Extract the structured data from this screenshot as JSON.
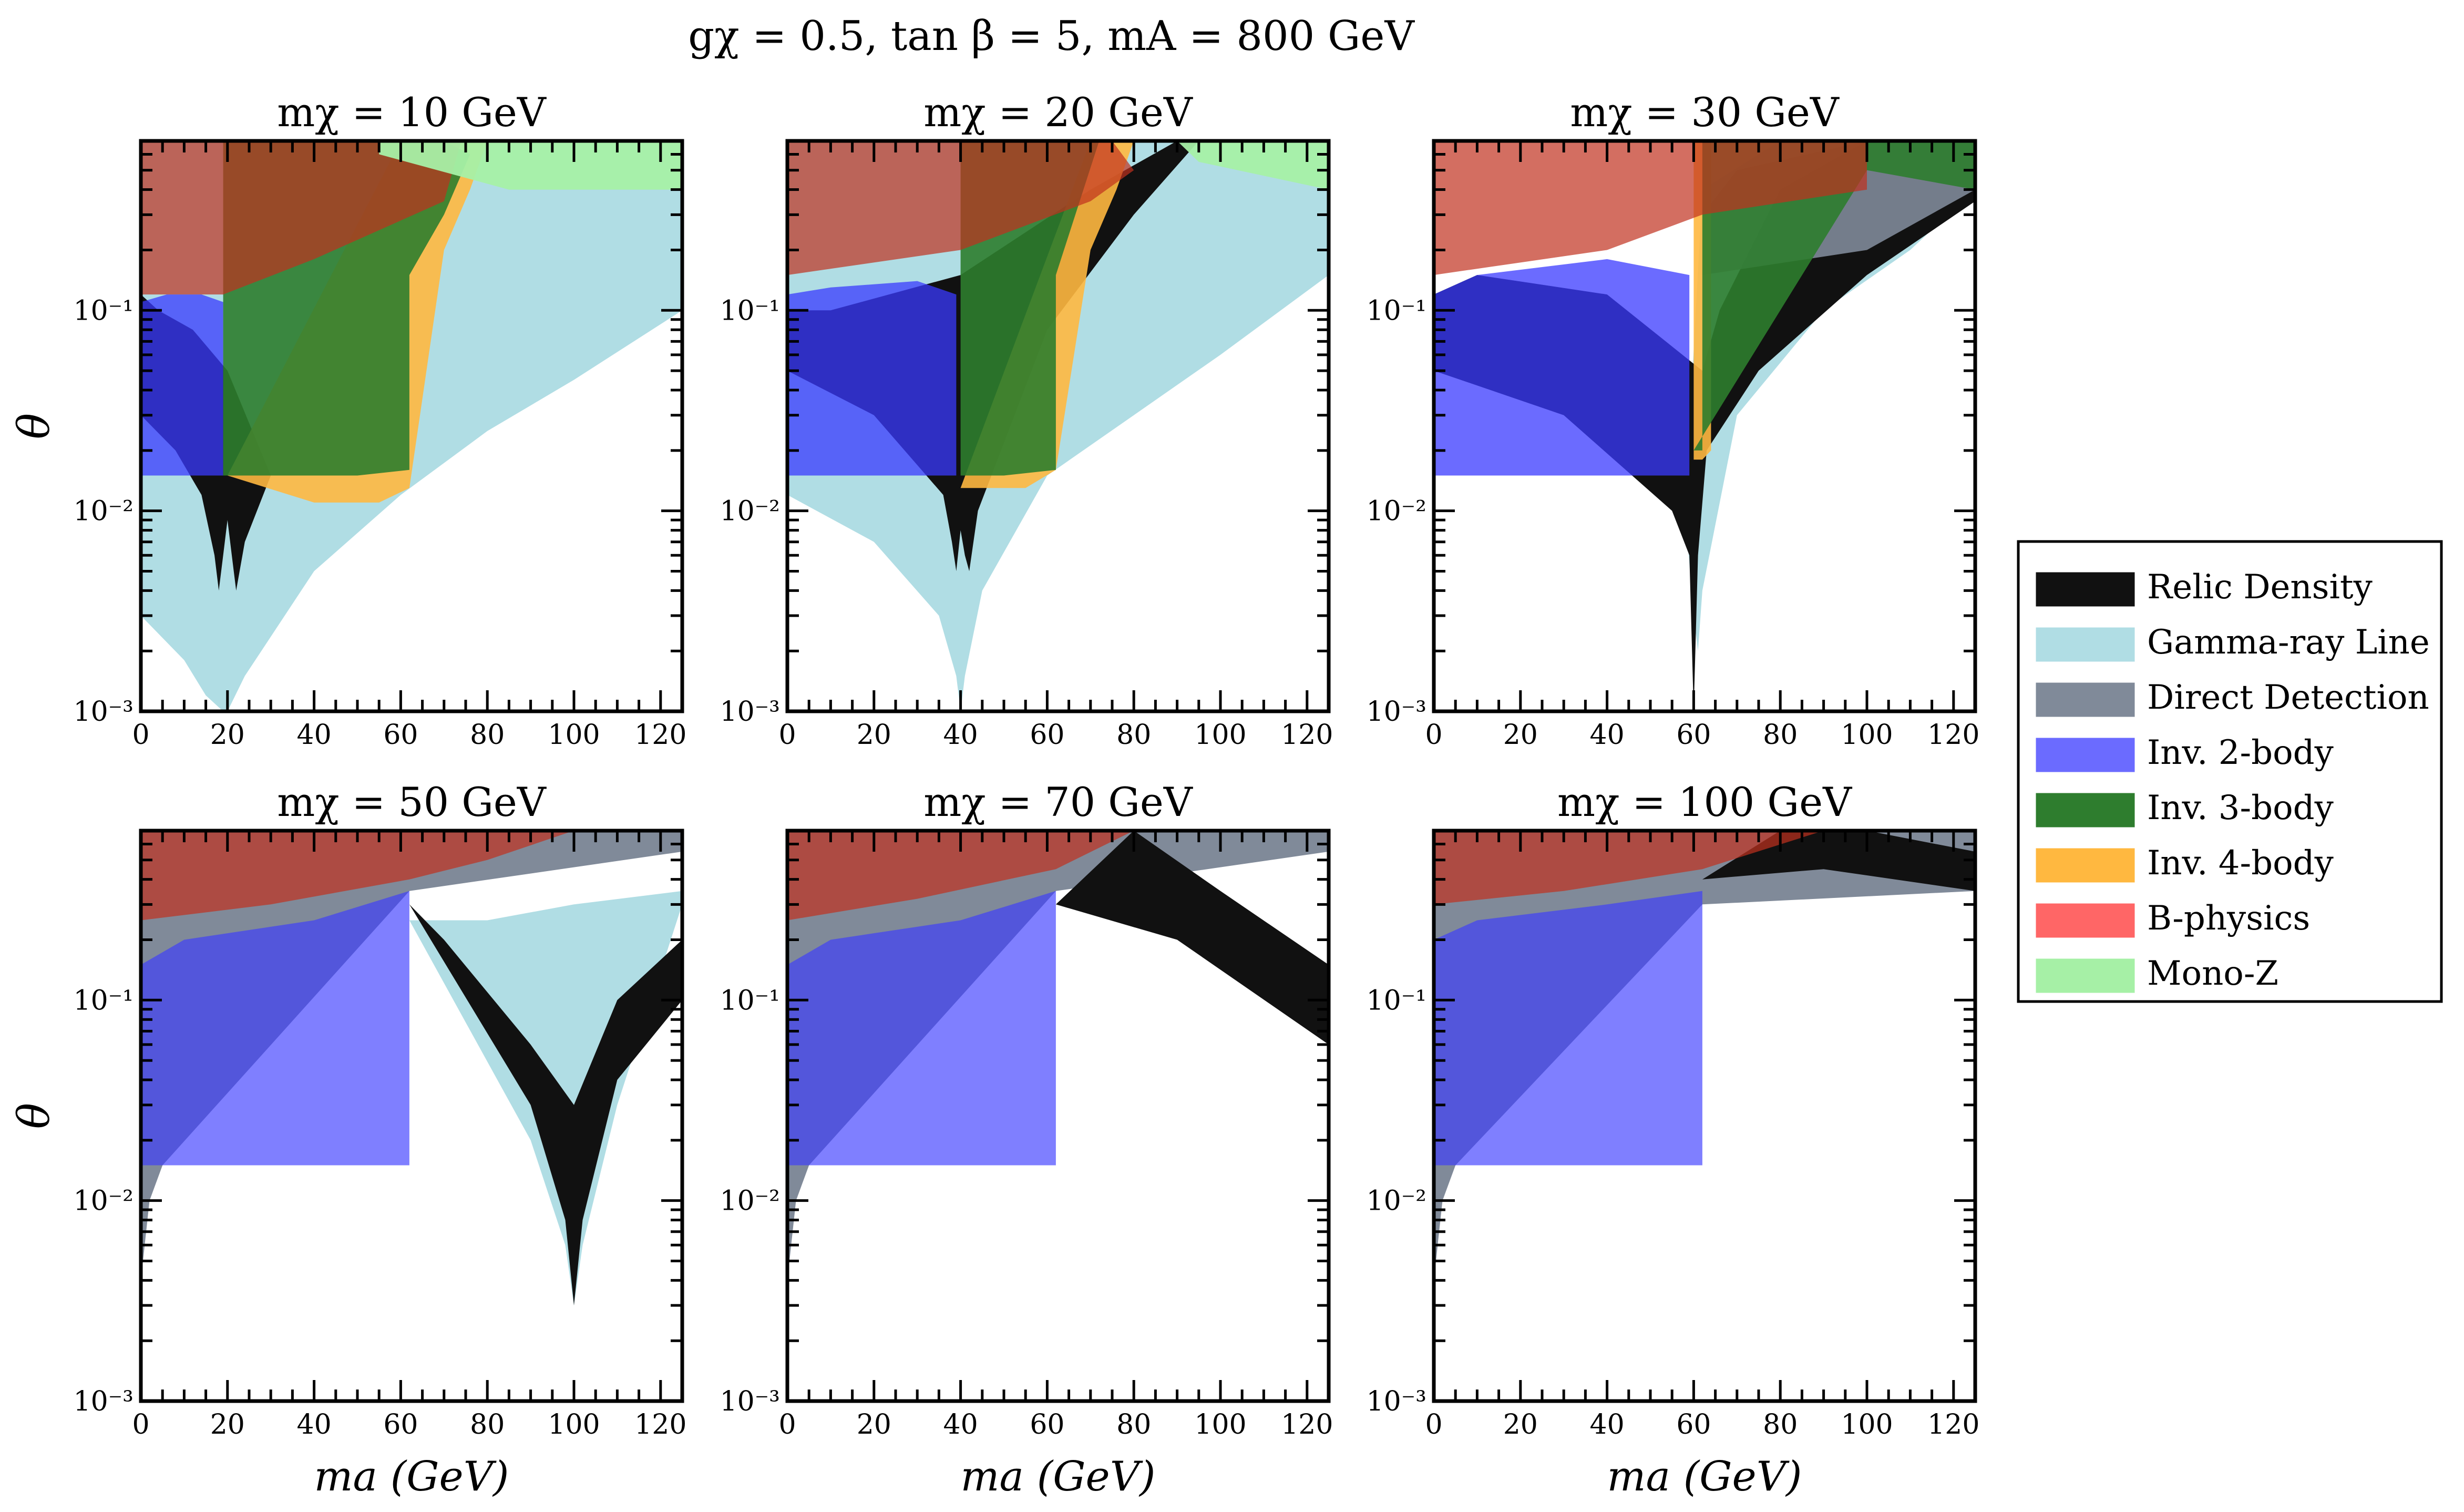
{
  "figure": {
    "suptitle": "gχ = 0.5,  tan β = 5,  mA = 800 GeV"
  },
  "legend": {
    "placement": "right",
    "items": [
      {
        "label": "Relic Density",
        "color": "#111111"
      },
      {
        "label": "Gamma-ray Line",
        "color": "#b0dde4"
      },
      {
        "label": "Direct Detection",
        "color": "#808a99"
      },
      {
        "label": "Inv. 2-body",
        "color": "#6b6bff"
      },
      {
        "label": "Inv. 3-body",
        "color": "#2e7d2e"
      },
      {
        "label": "Inv. 4-body",
        "color": "#ffb840"
      },
      {
        "label": "B-physics",
        "color": "#ff6666"
      },
      {
        "label": "Mono-Z",
        "color": "#a6f0a6"
      }
    ]
  },
  "chart_data": [
    {
      "type": "area",
      "title": "mχ = 10 GeV",
      "xlabel": "",
      "ylabel": "θ",
      "xlim": [
        0,
        125
      ],
      "ylim": [
        0.001,
        0.7
      ],
      "yscale": "log",
      "xticks": [
        0,
        20,
        40,
        60,
        80,
        100,
        120
      ],
      "yticks": [
        "10⁻¹",
        "10⁻²",
        "10⁻³"
      ],
      "regions": [
        {
          "name": "Gamma-ray Line",
          "color": "#b0dde4",
          "alpha": 1.0,
          "x": [
            0,
            10,
            15,
            19,
            20,
            24,
            40,
            60,
            80,
            100,
            125,
            125,
            0
          ],
          "y": [
            0.003,
            0.0018,
            0.0012,
            0.001,
            0.001,
            0.0015,
            0.005,
            0.012,
            0.025,
            0.045,
            0.1,
            0.7,
            0.7
          ]
        },
        {
          "name": "Relic Density",
          "color": "#111111",
          "alpha": 1.0,
          "x": [
            0,
            8,
            14,
            17,
            18,
            19,
            20,
            21,
            22,
            24,
            30,
            20,
            12,
            4,
            0
          ],
          "y": [
            0.03,
            0.02,
            0.012,
            0.006,
            0.004,
            0.006,
            0.009,
            0.006,
            0.004,
            0.007,
            0.015,
            0.05,
            0.08,
            0.1,
            0.12
          ]
        },
        {
          "name": "Inv. 2-body",
          "color": "#3a3aff",
          "alpha": 0.75,
          "x": [
            0,
            19,
            19,
            14,
            6,
            0
          ],
          "y": [
            0.015,
            0.015,
            0.11,
            0.12,
            0.12,
            0.11
          ]
        },
        {
          "name": "Inv. 4-body",
          "color": "#ffb840",
          "alpha": 0.9,
          "x": [
            20,
            40,
            55,
            62,
            70,
            76,
            80,
            75,
            60
          ],
          "y": [
            0.015,
            0.011,
            0.011,
            0.013,
            0.2,
            0.4,
            0.7,
            0.7,
            0.7
          ]
        },
        {
          "name": "Inv. 3-body",
          "color": "#2e7d2e",
          "alpha": 0.9,
          "x": [
            19,
            30,
            50,
            62,
            62,
            70,
            76,
            70,
            40,
            19
          ],
          "y": [
            0.015,
            0.015,
            0.015,
            0.016,
            0.15,
            0.3,
            0.6,
            0.7,
            0.7,
            0.7
          ]
        },
        {
          "name": "B-physics",
          "color": "#c0301e",
          "alpha": 0.7,
          "x": [
            0,
            19,
            40,
            60,
            74,
            70,
            40,
            19,
            0
          ],
          "y": [
            0.7,
            0.7,
            0.7,
            0.7,
            0.7,
            0.35,
            0.18,
            0.12,
            0.12
          ]
        },
        {
          "name": "Mono-Z",
          "color": "#a6f0a6",
          "alpha": 0.95,
          "x": [
            55,
            125,
            125,
            85,
            55
          ],
          "y": [
            0.7,
            0.7,
            0.4,
            0.4,
            0.6
          ]
        }
      ]
    },
    {
      "type": "area",
      "title": "mχ = 20 GeV",
      "xlabel": "",
      "ylabel": "",
      "xlim": [
        0,
        125
      ],
      "ylim": [
        0.001,
        0.7
      ],
      "yscale": "log",
      "xticks": [
        0,
        20,
        40,
        60,
        80,
        100,
        120
      ],
      "yticks": [
        "10⁻¹",
        "10⁻²",
        "10⁻³"
      ],
      "regions": [
        {
          "name": "Gamma-ray Line",
          "color": "#b0dde4",
          "alpha": 1.0,
          "x": [
            0,
            20,
            35,
            39,
            40,
            41,
            45,
            60,
            80,
            100,
            125,
            125,
            0
          ],
          "y": [
            0.012,
            0.007,
            0.003,
            0.0015,
            0.001,
            0.0015,
            0.004,
            0.015,
            0.03,
            0.06,
            0.15,
            0.7,
            0.7
          ]
        },
        {
          "name": "Relic Density",
          "color": "#111111",
          "alpha": 1.0,
          "x": [
            0,
            20,
            36,
            38,
            39,
            40,
            41,
            42,
            44,
            60,
            80,
            95,
            90,
            70,
            40,
            10,
            0
          ],
          "y": [
            0.05,
            0.03,
            0.012,
            0.007,
            0.005,
            0.008,
            0.006,
            0.005,
            0.01,
            0.08,
            0.3,
            0.7,
            0.7,
            0.4,
            0.15,
            0.1,
            0.1
          ]
        },
        {
          "name": "Inv. 2-body",
          "color": "#3a3aff",
          "alpha": 0.75,
          "x": [
            0,
            39,
            39,
            30,
            10,
            0
          ],
          "y": [
            0.015,
            0.015,
            0.12,
            0.14,
            0.13,
            0.12
          ]
        },
        {
          "name": "Inv. 4-body",
          "color": "#ffb840",
          "alpha": 0.9,
          "x": [
            40,
            55,
            62,
            70,
            76,
            80,
            70
          ],
          "y": [
            0.013,
            0.013,
            0.016,
            0.2,
            0.4,
            0.7,
            0.7
          ]
        },
        {
          "name": "Inv. 3-body",
          "color": "#2e7d2e",
          "alpha": 0.9,
          "x": [
            40,
            50,
            62,
            62,
            72,
            70,
            40
          ],
          "y": [
            0.015,
            0.015,
            0.016,
            0.15,
            0.7,
            0.7,
            0.7
          ]
        },
        {
          "name": "B-physics",
          "color": "#c0301e",
          "alpha": 0.7,
          "x": [
            0,
            40,
            75,
            80,
            70,
            40,
            0
          ],
          "y": [
            0.7,
            0.7,
            0.7,
            0.5,
            0.35,
            0.2,
            0.15
          ]
        },
        {
          "name": "Mono-Z",
          "color": "#a6f0a6",
          "alpha": 0.95,
          "x": [
            90,
            125,
            125,
            95
          ],
          "y": [
            0.7,
            0.7,
            0.4,
            0.55
          ]
        }
      ]
    },
    {
      "type": "area",
      "title": "mχ = 30 GeV",
      "xlabel": "",
      "ylabel": "",
      "xlim": [
        0,
        125
      ],
      "ylim": [
        0.001,
        0.7
      ],
      "yscale": "log",
      "xticks": [
        0,
        20,
        40,
        60,
        80,
        100,
        120
      ],
      "yticks": [
        "10⁻¹",
        "10⁻²",
        "10⁻³"
      ],
      "regions": [
        {
          "name": "Gamma-ray Line",
          "color": "#b0dde4",
          "alpha": 1.0,
          "x": [
            58,
            60,
            61,
            62,
            70,
            90,
            110,
            125,
            125,
            100,
            80,
            62
          ],
          "y": [
            0.01,
            0.003,
            0.002,
            0.004,
            0.03,
            0.1,
            0.2,
            0.4,
            0.7,
            0.7,
            0.7,
            0.4
          ]
        },
        {
          "name": "Relic Density",
          "color": "#111111",
          "alpha": 1.0,
          "x": [
            0,
            30,
            55,
            59,
            60,
            61,
            63,
            75,
            100,
            125,
            125,
            100,
            80,
            66,
            62,
            40,
            10,
            0
          ],
          "y": [
            0.05,
            0.03,
            0.01,
            0.006,
            0.001,
            0.006,
            0.02,
            0.05,
            0.15,
            0.35,
            0.7,
            0.7,
            0.4,
            0.1,
            0.05,
            0.12,
            0.15,
            0.12
          ]
        },
        {
          "name": "Direct Detection",
          "color": "#808a99",
          "alpha": 0.9,
          "x": [
            62,
            100,
            125,
            125,
            100,
            70,
            62
          ],
          "y": [
            0.15,
            0.2,
            0.4,
            0.7,
            0.7,
            0.5,
            0.3
          ]
        },
        {
          "name": "Inv. 2-body",
          "color": "#3a3aff",
          "alpha": 0.75,
          "x": [
            0,
            59,
            59,
            40,
            10,
            0
          ],
          "y": [
            0.015,
            0.015,
            0.15,
            0.18,
            0.15,
            0.12
          ]
        },
        {
          "name": "Inv. 4-body",
          "color": "#ffb840",
          "alpha": 0.9,
          "x": [
            60,
            62,
            64,
            64,
            62,
            60
          ],
          "y": [
            0.018,
            0.018,
            0.02,
            0.7,
            0.7,
            0.7
          ]
        },
        {
          "name": "Inv. 3-body",
          "color": "#2e7d2e",
          "alpha": 0.9,
          "x": [
            60,
            62,
            62,
            60,
            100,
            125,
            125,
            100
          ],
          "y": [
            0.02,
            0.02,
            0.7,
            0.7,
            0.7,
            0.7,
            0.4,
            0.5
          ]
        },
        {
          "name": "B-physics",
          "color": "#c0301e",
          "alpha": 0.7,
          "x": [
            0,
            62,
            100,
            100,
            62,
            40,
            0
          ],
          "y": [
            0.7,
            0.7,
            0.7,
            0.4,
            0.3,
            0.2,
            0.15
          ]
        }
      ]
    },
    {
      "type": "area",
      "title": "mχ = 50 GeV",
      "xlabel": "ma (GeV)",
      "ylabel": "θ",
      "xlim": [
        0,
        125
      ],
      "ylim": [
        0.001,
        0.7
      ],
      "yscale": "log",
      "xticks": [
        0,
        20,
        40,
        60,
        80,
        100,
        120
      ],
      "yticks": [
        "10⁻¹",
        "10⁻²",
        "10⁻³"
      ],
      "regions": [
        {
          "name": "Direct Detection",
          "color": "#808a99",
          "alpha": 1.0,
          "x": [
            0,
            2,
            5,
            62,
            125,
            125,
            0
          ],
          "y": [
            0.004,
            0.01,
            0.015,
            0.35,
            0.55,
            0.7,
            0.7
          ]
        },
        {
          "name": "Gamma-ray Line",
          "color": "#b0dde4",
          "alpha": 1.0,
          "x": [
            62,
            90,
            98,
            100,
            102,
            110,
            125,
            125,
            100,
            80
          ],
          "y": [
            0.25,
            0.02,
            0.006,
            0.003,
            0.006,
            0.03,
            0.3,
            0.35,
            0.3,
            0.25
          ]
        },
        {
          "name": "Relic Density",
          "color": "#111111",
          "alpha": 1.0,
          "x": [
            62,
            90,
            98,
            100,
            102,
            110,
            125,
            125,
            110,
            100,
            90,
            70
          ],
          "y": [
            0.3,
            0.03,
            0.008,
            0.003,
            0.008,
            0.04,
            0.1,
            0.2,
            0.1,
            0.03,
            0.06,
            0.2
          ]
        },
        {
          "name": "Inv. 2-body",
          "color": "#3a3aff",
          "alpha": 0.65,
          "x": [
            0,
            62,
            62,
            40,
            10,
            0
          ],
          "y": [
            0.015,
            0.015,
            0.35,
            0.25,
            0.2,
            0.15
          ]
        },
        {
          "name": "B-physics",
          "color": "#c0301e",
          "alpha": 0.7,
          "x": [
            0,
            62,
            100,
            80,
            62,
            30,
            0
          ],
          "y": [
            0.7,
            0.7,
            0.7,
            0.5,
            0.4,
            0.3,
            0.25
          ]
        }
      ]
    },
    {
      "type": "area",
      "title": "mχ = 70 GeV",
      "xlabel": "ma (GeV)",
      "ylabel": "",
      "xlim": [
        0,
        125
      ],
      "ylim": [
        0.001,
        0.7
      ],
      "yscale": "log",
      "xticks": [
        0,
        20,
        40,
        60,
        80,
        100,
        120
      ],
      "yticks": [
        "10⁻¹",
        "10⁻²",
        "10⁻³"
      ],
      "regions": [
        {
          "name": "Direct Detection",
          "color": "#808a99",
          "alpha": 1.0,
          "x": [
            0,
            2,
            5,
            62,
            125,
            125,
            0
          ],
          "y": [
            0.004,
            0.01,
            0.015,
            0.35,
            0.55,
            0.7,
            0.7
          ]
        },
        {
          "name": "Relic Density",
          "color": "#111111",
          "alpha": 1.0,
          "x": [
            62,
            90,
            125,
            125,
            100,
            80
          ],
          "y": [
            0.3,
            0.2,
            0.06,
            0.15,
            0.35,
            0.7
          ]
        },
        {
          "name": "Inv. 2-body",
          "color": "#3a3aff",
          "alpha": 0.65,
          "x": [
            0,
            62,
            62,
            40,
            10,
            0
          ],
          "y": [
            0.015,
            0.015,
            0.35,
            0.25,
            0.2,
            0.15
          ]
        },
        {
          "name": "B-physics",
          "color": "#c0301e",
          "alpha": 0.7,
          "x": [
            0,
            62,
            80,
            62,
            30,
            0
          ],
          "y": [
            0.7,
            0.7,
            0.7,
            0.45,
            0.32,
            0.25
          ]
        }
      ]
    },
    {
      "type": "area",
      "title": "mχ = 100 GeV",
      "xlabel": "ma (GeV)",
      "ylabel": "",
      "xlim": [
        0,
        125
      ],
      "ylim": [
        0.001,
        0.7
      ],
      "yscale": "log",
      "xticks": [
        0,
        20,
        40,
        60,
        80,
        100,
        120
      ],
      "yticks": [
        "10⁻¹",
        "10⁻²",
        "10⁻³"
      ],
      "regions": [
        {
          "name": "Direct Detection",
          "color": "#808a99",
          "alpha": 1.0,
          "x": [
            0,
            2,
            5,
            62,
            125,
            125,
            0
          ],
          "y": [
            0.004,
            0.01,
            0.015,
            0.3,
            0.35,
            0.7,
            0.7
          ]
        },
        {
          "name": "Relic Density",
          "color": "#111111",
          "alpha": 1.0,
          "x": [
            62,
            90,
            125,
            125,
            100,
            80
          ],
          "y": [
            0.4,
            0.45,
            0.35,
            0.55,
            0.7,
            0.7
          ]
        },
        {
          "name": "Inv. 2-body",
          "color": "#3a3aff",
          "alpha": 0.65,
          "x": [
            0,
            62,
            62,
            40,
            10,
            0
          ],
          "y": [
            0.015,
            0.015,
            0.35,
            0.3,
            0.25,
            0.2
          ]
        },
        {
          "name": "B-physics",
          "color": "#c0301e",
          "alpha": 0.7,
          "x": [
            0,
            62,
            90,
            62,
            30,
            0
          ],
          "y": [
            0.7,
            0.7,
            0.7,
            0.45,
            0.35,
            0.3
          ]
        }
      ]
    }
  ]
}
